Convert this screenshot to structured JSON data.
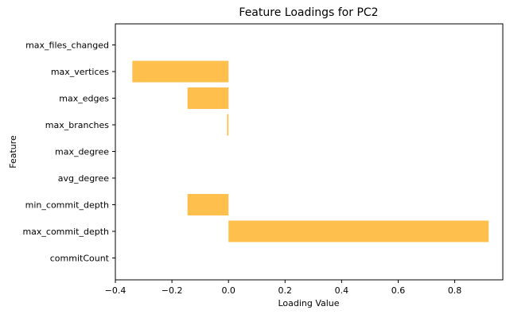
{
  "chart_data": {
    "type": "bar",
    "orientation": "horizontal",
    "title": "Feature Loadings for PC2",
    "xlabel": "Loading Value",
    "ylabel": "Feature",
    "categories": [
      "commitCount",
      "max_commit_depth",
      "min_commit_depth",
      "avg_degree",
      "max_degree",
      "max_branches",
      "max_edges",
      "max_vertices",
      "max_files_changed"
    ],
    "values": [
      0.0,
      0.92,
      -0.145,
      0.0,
      0.0,
      -0.005,
      -0.145,
      -0.34,
      0.0
    ],
    "xlim": [
      -0.4,
      0.97
    ],
    "xticks": [
      -0.4,
      -0.2,
      0.0,
      0.2,
      0.4,
      0.6,
      0.8
    ],
    "xtick_labels": [
      "−0.4",
      "−0.2",
      "0.0",
      "0.2",
      "0.4",
      "0.6",
      "0.8"
    ],
    "bar_color": "#ffbf4d",
    "grid": false,
    "legend": "none"
  }
}
